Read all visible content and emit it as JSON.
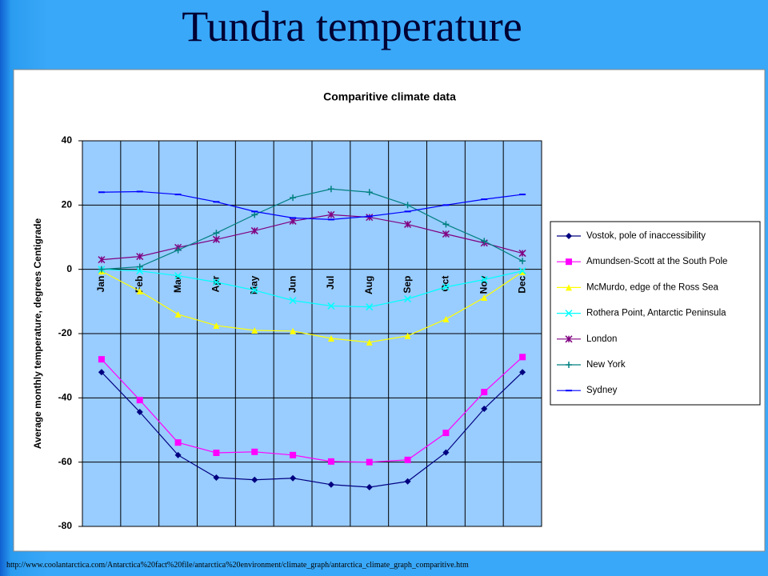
{
  "slide_title": "Tundra  temperature",
  "source_url": "http://www.coolantarctica.com/Antarctica%20fact%20file/antarctica%20environment/climate_graph/antarctica_climate_graph_comparitive.htm",
  "chart_data": {
    "type": "line",
    "title": "Comparitive climate data",
    "y_label": "Average monthly temperature, degrees Centigrade",
    "categories": [
      "Jan",
      "Feb",
      "Mar",
      "Apr",
      "May",
      "Jun",
      "Jul",
      "Aug",
      "Sep",
      "Oct",
      "Nov",
      "Dec"
    ],
    "ylim": [
      -80,
      40
    ],
    "yticks": [
      -80,
      -60,
      -40,
      -20,
      0,
      20,
      40
    ],
    "grid": true,
    "legend": "right",
    "series": [
      {
        "name": "Vostok, pole of inaccessibility",
        "color": "#000080",
        "marker": "diamond",
        "values": [
          -32,
          -44.4,
          -57.8,
          -64.8,
          -65.5,
          -65,
          -67,
          -67.8,
          -66,
          -57,
          -43.4,
          -32
        ]
      },
      {
        "name": "Amundsen-Scott at the South Pole",
        "color": "#ff00ff",
        "marker": "square",
        "values": [
          -28,
          -40.7,
          -53.9,
          -57.1,
          -56.8,
          -57.8,
          -59.8,
          -60,
          -59.3,
          -50.9,
          -38.2,
          -27.3
        ]
      },
      {
        "name": "McMurdo, edge of the Ross Sea",
        "color": "#ffff00",
        "marker": "triangle",
        "values": [
          -0.6,
          -6.8,
          -14,
          -17.5,
          -19,
          -19.2,
          -21.5,
          -22.7,
          -20.7,
          -15.5,
          -8.8,
          -0.8
        ]
      },
      {
        "name": "Rothera Point, Antarctic Peninsula",
        "color": "#00ffff",
        "marker": "x",
        "values": [
          0,
          -0.5,
          -2,
          -4,
          -6.5,
          -9.7,
          -11.4,
          -11.7,
          -9.2,
          -5.5,
          -3.2,
          -0.5
        ]
      },
      {
        "name": "London",
        "color": "#800080",
        "marker": "star",
        "values": [
          3,
          4,
          6.8,
          9.3,
          12,
          15,
          17,
          16.2,
          14,
          11,
          8.2,
          5
        ]
      },
      {
        "name": "New York",
        "color": "#008080",
        "marker": "plus",
        "values": [
          0,
          0.8,
          6,
          11.3,
          17,
          22.3,
          25,
          24,
          20,
          14,
          8.8,
          2.6
        ]
      },
      {
        "name": "Sydney",
        "color": "#0000ff",
        "marker": "dash",
        "values": [
          24,
          24.2,
          23.3,
          21,
          18,
          16,
          15.5,
          16.5,
          18,
          20,
          21.8,
          23.3
        ]
      }
    ]
  }
}
